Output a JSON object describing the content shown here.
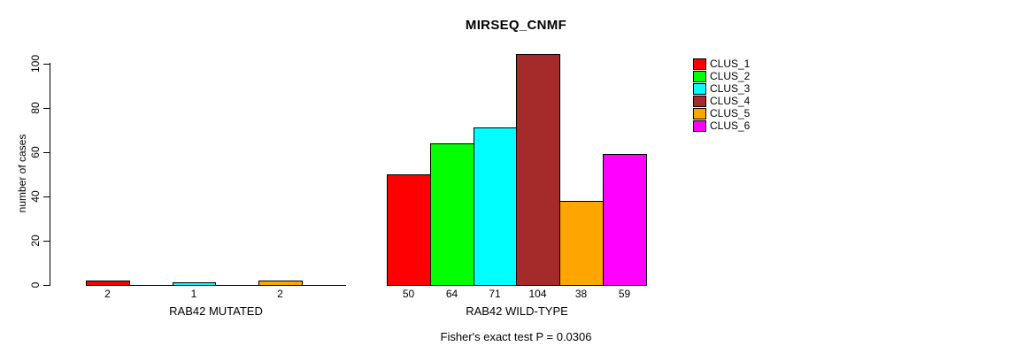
{
  "chart_data": {
    "type": "bar",
    "title": "MIRSEQ_CNMF",
    "ylabel": "number of cases",
    "xlabel": "",
    "ylim": [
      0,
      100
    ],
    "yticks": [
      0,
      20,
      40,
      60,
      80,
      100
    ],
    "grid": false,
    "legend_position": "right",
    "clusters": [
      {
        "name": "CLUS_1",
        "color": "#FF0000"
      },
      {
        "name": "CLUS_2",
        "color": "#00FF00"
      },
      {
        "name": "CLUS_3",
        "color": "#00FFFF"
      },
      {
        "name": "CLUS_4",
        "color": "#A52A2A"
      },
      {
        "name": "CLUS_5",
        "color": "#FFA500"
      },
      {
        "name": "CLUS_6",
        "color": "#FF00FF"
      }
    ],
    "groups": [
      {
        "label": "RAB42 MUTATED",
        "values": [
          2,
          0,
          1,
          0,
          2,
          0
        ]
      },
      {
        "label": "RAB42 WILD-TYPE",
        "values": [
          50,
          64,
          71,
          104,
          38,
          59
        ]
      }
    ],
    "annotation": "Fisher's exact test P = 0.0306"
  }
}
